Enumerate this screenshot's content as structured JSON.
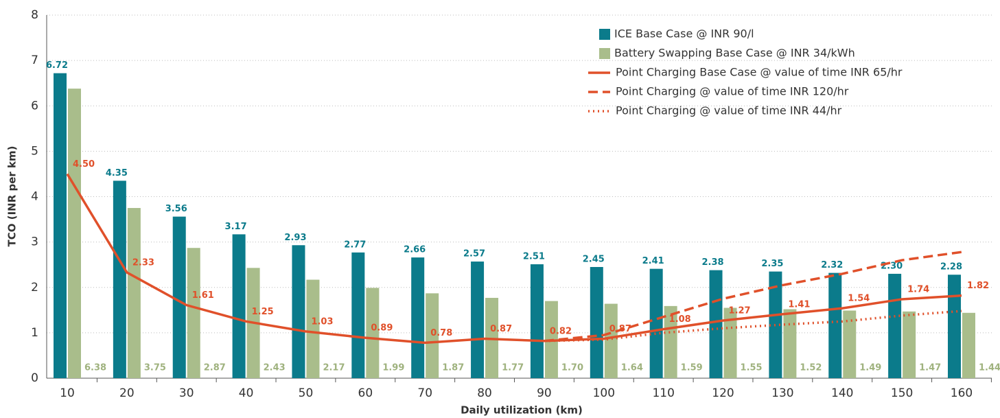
{
  "chart_data": {
    "type": "bar",
    "x_label": "Daily utilization (km)",
    "y_label": "TCO (INR per km)",
    "categories": [
      "10",
      "20",
      "30",
      "40",
      "50",
      "60",
      "70",
      "80",
      "90",
      "100",
      "110",
      "120",
      "130",
      "140",
      "150",
      "160"
    ],
    "series": [
      {
        "name": "ICE Base Case @ INR 90/l",
        "type": "bar",
        "color": "#0b7b8b",
        "values": [
          6.72,
          4.35,
          3.56,
          3.17,
          2.93,
          2.77,
          2.66,
          2.57,
          2.51,
          2.45,
          2.41,
          2.38,
          2.35,
          2.32,
          2.3,
          2.28
        ],
        "value_labels": [
          "6.72",
          "4.35",
          "3.56",
          "3.17",
          "2.93",
          "2.77",
          "2.66",
          "2.57",
          "2.51",
          "2.45",
          "2.41",
          "2.38",
          "2.35",
          "2.32",
          "2.30",
          "2.28"
        ]
      },
      {
        "name": "Battery Swapping Base Case @ INR 34/kWh",
        "type": "bar",
        "color": "#a9bd8b",
        "values": [
          6.38,
          3.75,
          2.87,
          2.43,
          2.17,
          1.99,
          1.87,
          1.77,
          1.7,
          1.64,
          1.59,
          1.55,
          1.52,
          1.49,
          1.47,
          1.44
        ],
        "value_labels": [
          "6.38",
          "3.75",
          "2.87",
          "2.43",
          "2.17",
          "1.99",
          "1.87",
          "1.77",
          "1.70",
          "1.64",
          "1.59",
          "1.55",
          "1.52",
          "1.49",
          "1.47",
          "1.44"
        ]
      },
      {
        "name": "Point Charging Base Case @ value of time INR 65/hr",
        "type": "line",
        "dash": "solid",
        "color": "#e0502a",
        "values": [
          4.5,
          2.33,
          1.61,
          1.25,
          1.03,
          0.89,
          0.78,
          0.87,
          0.82,
          0.87,
          1.08,
          1.27,
          1.41,
          1.54,
          1.74,
          1.82
        ],
        "value_labels": [
          "4.50",
          "2.33",
          "1.61",
          "1.25",
          "1.03",
          "0.89",
          "0.78",
          "0.87",
          "0.82",
          "0.87",
          "1.08",
          "1.27",
          "1.41",
          "1.54",
          "1.74",
          "1.82"
        ]
      },
      {
        "name": "Point Charging @ value of time INR 120/hr",
        "type": "line",
        "dash": "dashed",
        "color": "#e0502a",
        "values": [
          null,
          null,
          null,
          null,
          null,
          null,
          null,
          null,
          0.82,
          0.95,
          1.35,
          1.75,
          2.05,
          2.3,
          2.6,
          2.78
        ]
      },
      {
        "name": "Point Charging @ value of time INR 44/hr",
        "type": "line",
        "dash": "dotted",
        "color": "#e0502a",
        "values": [
          null,
          null,
          null,
          null,
          null,
          null,
          null,
          null,
          0.82,
          0.85,
          1.0,
          1.1,
          1.18,
          1.25,
          1.38,
          1.48
        ]
      }
    ],
    "ylim": [
      0,
      8
    ],
    "yticks": [
      0,
      1,
      2,
      3,
      4,
      5,
      6,
      7,
      8
    ],
    "grid": true,
    "legend": "top-right"
  }
}
